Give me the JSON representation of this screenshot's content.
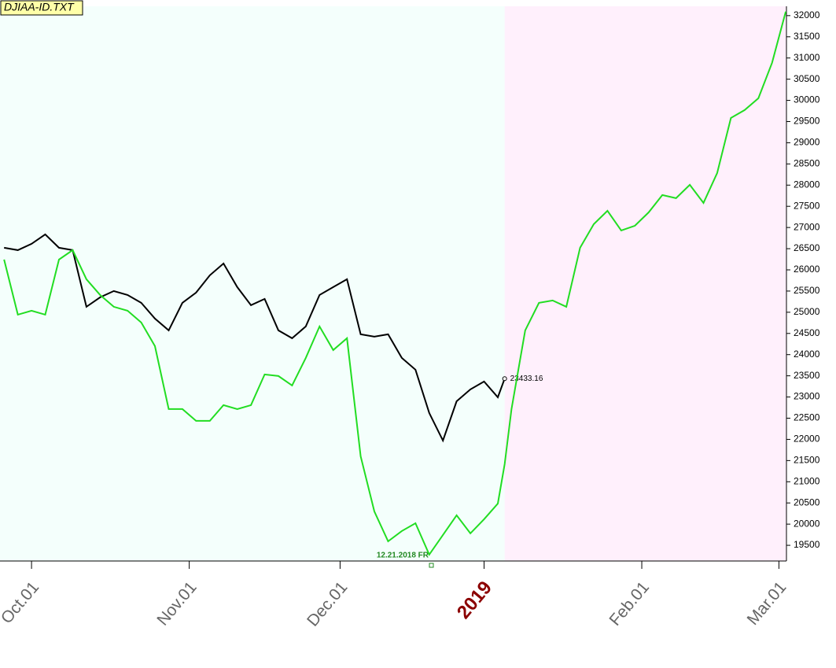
{
  "chart_data": {
    "type": "line",
    "title": "DJIAA-ID.TXT",
    "annotation": "12.21.2018 FR",
    "x": [
      -4,
      -2,
      0,
      2,
      4,
      6,
      8,
      10,
      12,
      14,
      16,
      18,
      20,
      22,
      24,
      26,
      28,
      30,
      32,
      34,
      36,
      38,
      40,
      42,
      44,
      46,
      48,
      50,
      52,
      54,
      56,
      58,
      60,
      62,
      64,
      66,
      68,
      69,
      70,
      72,
      74,
      76,
      78,
      80,
      82,
      84,
      86,
      88,
      90,
      92,
      94,
      96,
      98,
      100,
      102,
      104,
      106,
      108,
      110
    ],
    "series": [
      {
        "color": "#000000",
        "values": [
          26522,
          26466,
          26615,
          26838,
          26522,
          26466,
          25129,
          25352,
          25500,
          25407,
          25222,
          24850,
          24572,
          25222,
          25463,
          25872,
          26150,
          25593,
          25166,
          25315,
          24572,
          24386,
          24665,
          25407,
          25593,
          25779,
          24479,
          24423,
          24479,
          23922,
          23643,
          22622,
          21972,
          22900,
          23179,
          23365,
          22994,
          23433.16,
          null,
          null,
          null,
          null,
          null,
          null,
          null,
          null,
          null,
          null,
          null,
          null,
          null,
          null,
          null,
          null,
          null,
          null,
          null,
          null,
          null
        ]
      },
      {
        "color": "#22dd22",
        "values": [
          26243,
          24943,
          25036,
          24943,
          26243,
          26466,
          25779,
          25407,
          25129,
          25036,
          24757,
          24200,
          22715,
          22715,
          22436,
          22436,
          22808,
          22715,
          22808,
          23532,
          23495,
          23272,
          23922,
          24665,
          24107,
          24386,
          21600,
          20300,
          19595,
          19837,
          20022,
          19280,
          19744,
          20208,
          19781,
          20115,
          20486,
          21415,
          22715,
          24572,
          25222,
          25277,
          25129,
          26522,
          27079,
          27394,
          26930,
          27042,
          27357,
          27765,
          27691,
          28007,
          27580,
          28286,
          29586,
          29771,
          30050,
          30886,
          32093
        ]
      }
    ],
    "xlim": [
      -4.6,
      110.1
    ],
    "xticks": [
      {
        "value": 0,
        "label": "Oct.01"
      },
      {
        "value": 23,
        "label": "Nov.01"
      },
      {
        "value": 45,
        "label": "Dec.01"
      },
      {
        "value": 66,
        "label": "2019"
      },
      {
        "value": 89,
        "label": "Feb.01"
      },
      {
        "value": 109,
        "label": "Mar.01"
      }
    ],
    "ylim": [
      19130,
      32220
    ],
    "yticks": [
      19500,
      20000,
      20500,
      21000,
      21500,
      22000,
      22500,
      23000,
      23500,
      24000,
      24500,
      25000,
      25500,
      26000,
      26500,
      27000,
      27500,
      28000,
      28500,
      29000,
      29500,
      30000,
      30500,
      31000,
      31500,
      32000
    ]
  }
}
